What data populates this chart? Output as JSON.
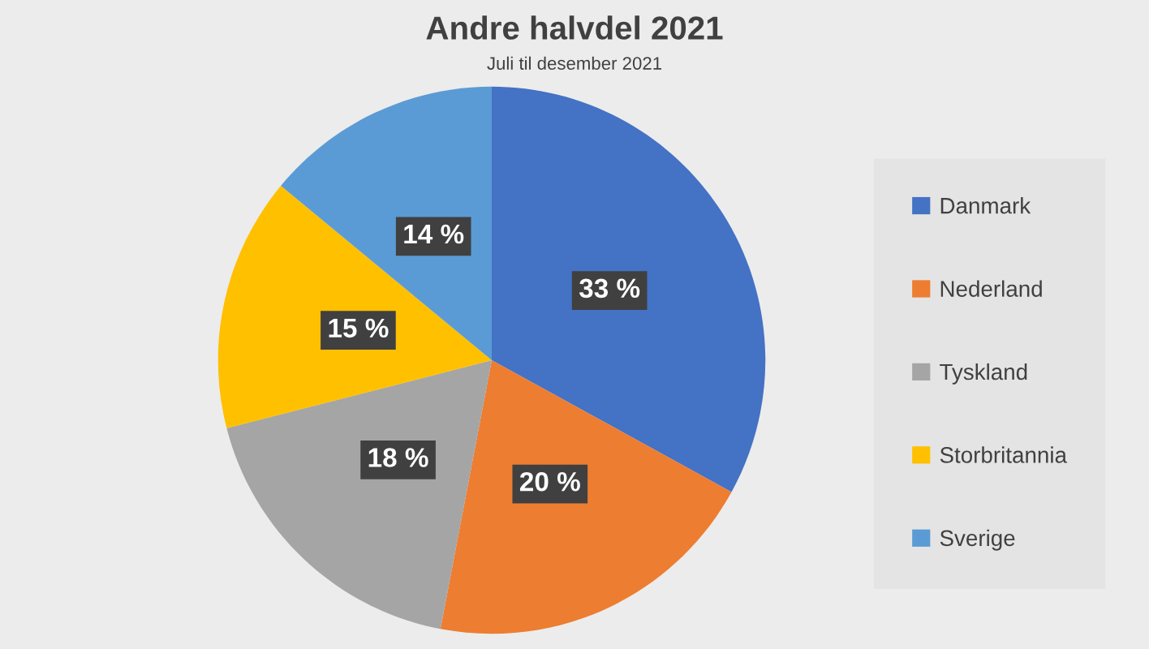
{
  "chart_data": {
    "type": "pie",
    "title": "Andre halvdel 2021",
    "subtitle": "Juli til desember 2021",
    "categories": [
      "Danmark",
      "Nederland",
      "Tyskland",
      "Storbritannia",
      "Sverige"
    ],
    "values": [
      33,
      20,
      18,
      15,
      14
    ],
    "colors": [
      "#4472c4",
      "#ed7d31",
      "#a5a5a5",
      "#ffc000",
      "#5b9bd5"
    ],
    "value_labels": [
      "33 %",
      "20 %",
      "18 %",
      "15 %",
      "14 %"
    ],
    "legend": "right"
  }
}
